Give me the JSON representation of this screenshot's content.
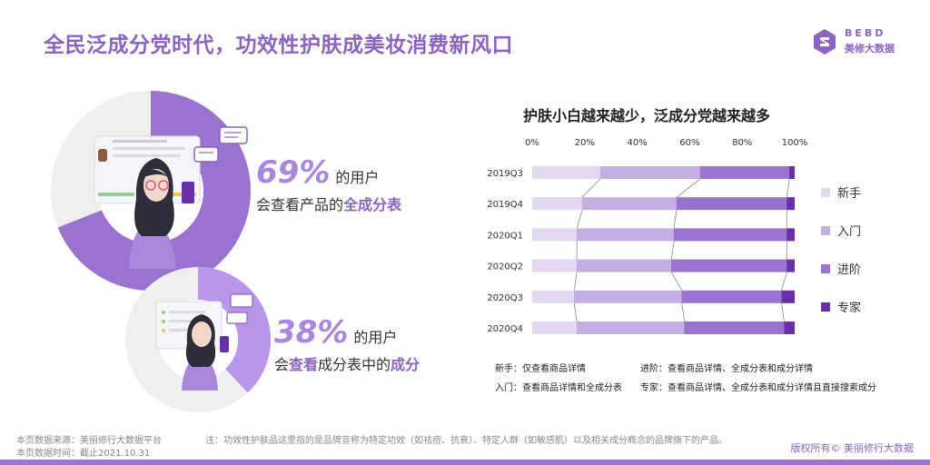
{
  "header": {
    "title": "全民泛成分党时代，功效性护肤成美妆消费新风口"
  },
  "logo": {
    "text_top": "BEBD",
    "text_bottom": "美修大数据"
  },
  "stat1": {
    "percent": "69%",
    "value": 69,
    "users": "的用户",
    "line_prefix": "会查看产品的",
    "line_highlight": "全成分表"
  },
  "stat2": {
    "percent": "38%",
    "value": 38,
    "users": "的用户",
    "line_prefix": "会",
    "line_highlight1": "查看",
    "line_middle": "成分表中的",
    "line_highlight2": "成分"
  },
  "chart_data": {
    "type": "bar",
    "orientation": "horizontal",
    "stacked": "percent",
    "title": "护肤小白越来越少，泛成分党越来越多",
    "categories": [
      "2019Q3",
      "2019Q4",
      "2020Q1",
      "2020Q2",
      "2020Q3",
      "2020Q4"
    ],
    "x_ticks": [
      "0%",
      "20%",
      "40%",
      "60%",
      "80%",
      "100%"
    ],
    "xlim": [
      0,
      100
    ],
    "series": [
      {
        "name": "新手",
        "color": "#e3d7f1",
        "values": [
          26,
          19,
          17,
          17,
          16,
          17
        ]
      },
      {
        "name": "入门",
        "color": "#c4aee3",
        "values": [
          38,
          36,
          37,
          36,
          41,
          41
        ]
      },
      {
        "name": "进阶",
        "color": "#9a72d0",
        "values": [
          34,
          42,
          43,
          44,
          38,
          38
        ]
      },
      {
        "name": "专家",
        "color": "#6a2fa8",
        "values": [
          2,
          3,
          3,
          3,
          5,
          4
        ]
      }
    ],
    "legend_position": "right",
    "connector_lines": true
  },
  "definitions": {
    "novice": "新手：仅查看商品详情",
    "advanced": "进阶：查看商品详情、全成分表和成分详情",
    "beginner": "入门：查看商品详情和全成分表",
    "expert": "专家：查看商品详情、全成分表和成分详情且直接搜索成分"
  },
  "footer": {
    "source": "本页数据来源：美丽修行大数据平台",
    "time": "本页数据时间：截止2021.10.31",
    "note": "注：功效性护肤品这里指的是品牌宣称为特定功效（如祛痘、抗衰）、特定人群（如敏感肌）以及相关成分概念的品牌旗下的产品。",
    "copyright": "版权所有© 美丽修行大数据"
  },
  "colors": {
    "accent": "#8a63c4",
    "donut_light": "#efefef",
    "donut1": "#9a72d0",
    "donut2": "#b896ea"
  }
}
